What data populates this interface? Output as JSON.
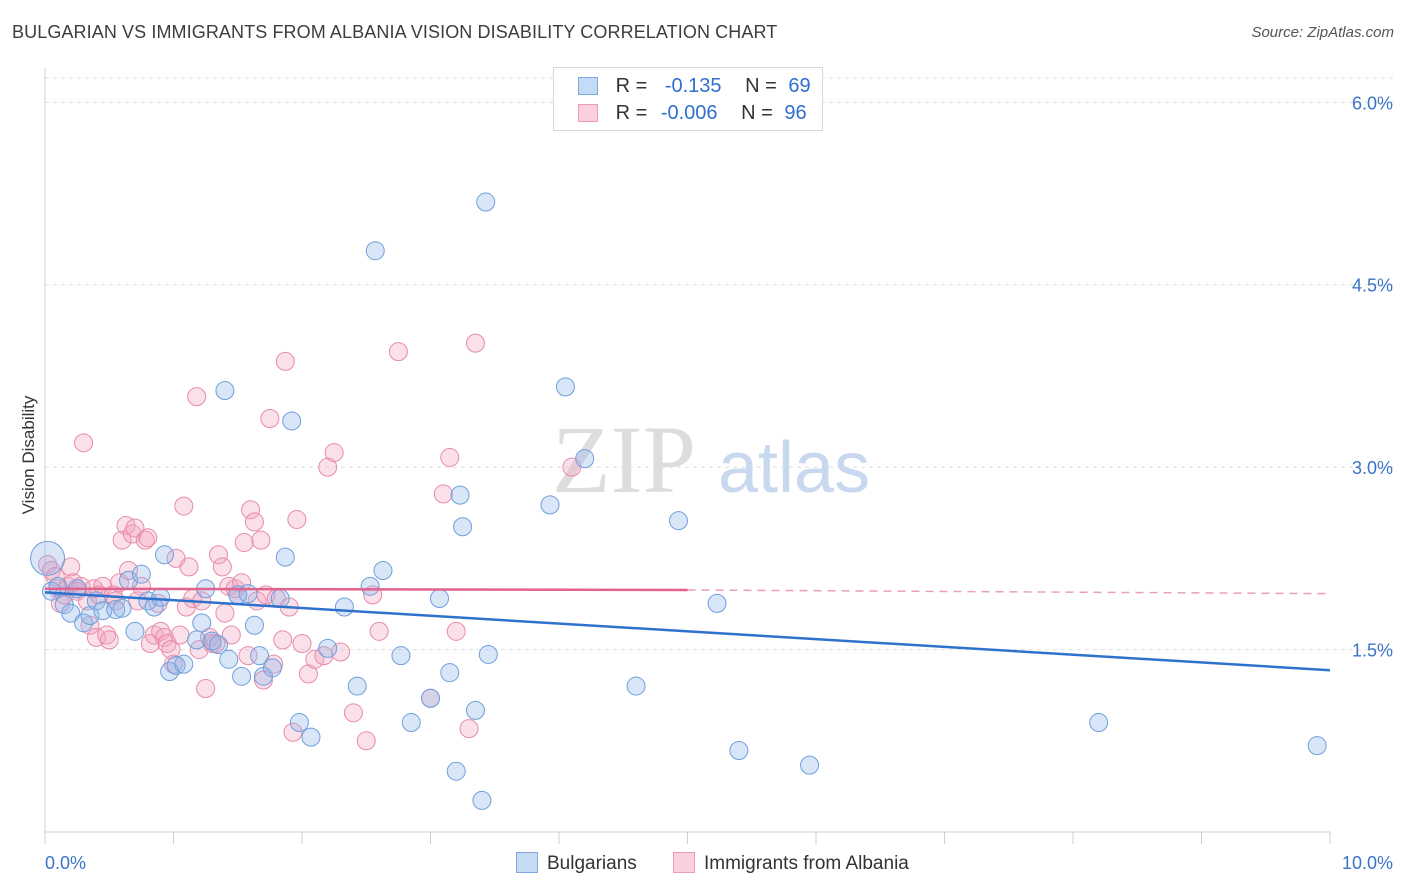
{
  "title": "BULGARIAN VS IMMIGRANTS FROM ALBANIA VISION DISABILITY CORRELATION CHART",
  "source": "Source: ZipAtlas.com",
  "watermark": {
    "zip": "ZIP",
    "atlas": "atlas"
  },
  "legend": {
    "rows": [
      {
        "r_label": "R =",
        "r_value": "-0.135",
        "n_label": "N =",
        "n_value": "69"
      },
      {
        "r_label": "R =",
        "r_value": "-0.006",
        "n_label": "N =",
        "n_value": "96"
      }
    ]
  },
  "chart_data": {
    "type": "scatter",
    "title": "BULGARIAN VS IMMIGRANTS FROM ALBANIA VISION DISABILITY CORRELATION CHART",
    "ylabel": "Vision Disability",
    "xlabel": "",
    "xlim": [
      0,
      10
    ],
    "ylim": [
      0,
      6.2
    ],
    "x_tick_labels": [
      {
        "value": 0,
        "label": "0.0%"
      },
      {
        "value": 10,
        "label": "10.0%"
      }
    ],
    "y_tick_labels": [
      {
        "value": 1.5,
        "label": "1.5%"
      },
      {
        "value": 3.0,
        "label": "3.0%"
      },
      {
        "value": 4.5,
        "label": "4.5%"
      },
      {
        "value": 6.0,
        "label": "6.0%"
      }
    ],
    "series": [
      {
        "name": "Bulgarians",
        "color": "#8fb8ea",
        "line_color": "#2f72cc",
        "R": -0.135,
        "N": 69,
        "trend": {
          "x0": 0,
          "y0": 1.97,
          "x1": 10,
          "y1": 1.33
        },
        "points": [
          [
            0.02,
            2.25
          ],
          [
            0.05,
            1.98
          ],
          [
            0.1,
            2.02
          ],
          [
            0.15,
            1.87
          ],
          [
            0.2,
            1.8
          ],
          [
            0.25,
            2.0
          ],
          [
            0.3,
            1.72
          ],
          [
            0.35,
            1.78
          ],
          [
            0.4,
            1.9
          ],
          [
            0.45,
            1.82
          ],
          [
            0.55,
            1.83
          ],
          [
            0.6,
            1.84
          ],
          [
            0.65,
            2.07
          ],
          [
            0.7,
            1.65
          ],
          [
            0.75,
            2.12
          ],
          [
            0.8,
            1.9
          ],
          [
            0.85,
            1.85
          ],
          [
            0.9,
            1.93
          ],
          [
            0.93,
            2.28
          ],
          [
            0.97,
            1.32
          ],
          [
            1.02,
            1.37
          ],
          [
            1.08,
            1.38
          ],
          [
            1.18,
            1.58
          ],
          [
            1.22,
            1.72
          ],
          [
            1.25,
            2.0
          ],
          [
            1.3,
            1.57
          ],
          [
            1.35,
            1.54
          ],
          [
            1.4,
            3.63
          ],
          [
            1.43,
            1.42
          ],
          [
            1.5,
            1.95
          ],
          [
            1.53,
            1.28
          ],
          [
            1.58,
            1.96
          ],
          [
            1.63,
            1.7
          ],
          [
            1.67,
            1.45
          ],
          [
            1.7,
            1.28
          ],
          [
            1.77,
            1.35
          ],
          [
            1.83,
            1.92
          ],
          [
            1.87,
            2.26
          ],
          [
            1.92,
            3.38
          ],
          [
            1.98,
            0.9
          ],
          [
            2.07,
            0.78
          ],
          [
            2.2,
            1.51
          ],
          [
            2.33,
            1.85
          ],
          [
            2.43,
            1.2
          ],
          [
            2.53,
            2.02
          ],
          [
            2.57,
            4.78
          ],
          [
            2.63,
            2.15
          ],
          [
            2.77,
            1.45
          ],
          [
            2.85,
            0.9
          ],
          [
            3.0,
            1.1
          ],
          [
            3.07,
            1.92
          ],
          [
            3.15,
            1.31
          ],
          [
            3.2,
            0.5
          ],
          [
            3.23,
            2.77
          ],
          [
            3.25,
            2.51
          ],
          [
            3.35,
            1.0
          ],
          [
            3.4,
            0.26
          ],
          [
            3.43,
            5.18
          ],
          [
            3.45,
            1.46
          ],
          [
            3.93,
            2.69
          ],
          [
            4.05,
            3.66
          ],
          [
            4.2,
            3.07
          ],
          [
            4.6,
            1.2
          ],
          [
            4.93,
            2.56
          ],
          [
            5.23,
            1.88
          ],
          [
            5.4,
            0.67
          ],
          [
            5.95,
            0.55
          ],
          [
            8.2,
            0.9
          ],
          [
            9.9,
            0.71
          ]
        ]
      },
      {
        "name": "Immigrants from Albania",
        "color": "#f2a7bf",
        "line_color": "#e0628e",
        "R": -0.006,
        "N": 96,
        "trend": {
          "x0": 0,
          "y0": 2.0,
          "x1": 5,
          "y1": 1.99,
          "dash_to_x": 10,
          "dash_to_y": 1.96
        },
        "points": [
          [
            0.02,
            2.2
          ],
          [
            0.05,
            2.15
          ],
          [
            0.08,
            2.1
          ],
          [
            0.1,
            2.0
          ],
          [
            0.12,
            1.88
          ],
          [
            0.15,
            1.95
          ],
          [
            0.18,
            2.02
          ],
          [
            0.2,
            2.18
          ],
          [
            0.22,
            2.05
          ],
          [
            0.25,
            1.98
          ],
          [
            0.28,
            2.02
          ],
          [
            0.3,
            3.2
          ],
          [
            0.33,
            1.9
          ],
          [
            0.35,
            1.7
          ],
          [
            0.38,
            2.0
          ],
          [
            0.4,
            1.6
          ],
          [
            0.42,
            1.95
          ],
          [
            0.45,
            2.02
          ],
          [
            0.48,
            1.62
          ],
          [
            0.5,
            1.58
          ],
          [
            0.53,
            1.95
          ],
          [
            0.55,
            1.9
          ],
          [
            0.58,
            2.05
          ],
          [
            0.6,
            2.4
          ],
          [
            0.63,
            2.52
          ],
          [
            0.65,
            2.15
          ],
          [
            0.68,
            2.45
          ],
          [
            0.7,
            2.5
          ],
          [
            0.72,
            1.9
          ],
          [
            0.75,
            2.02
          ],
          [
            0.78,
            2.4
          ],
          [
            0.8,
            2.42
          ],
          [
            0.82,
            1.55
          ],
          [
            0.85,
            1.62
          ],
          [
            0.88,
            1.88
          ],
          [
            0.9,
            1.65
          ],
          [
            0.93,
            1.6
          ],
          [
            0.95,
            1.55
          ],
          [
            0.98,
            1.5
          ],
          [
            1.0,
            1.38
          ],
          [
            1.02,
            2.25
          ],
          [
            1.05,
            1.62
          ],
          [
            1.08,
            2.68
          ],
          [
            1.1,
            1.85
          ],
          [
            1.12,
            2.18
          ],
          [
            1.15,
            1.92
          ],
          [
            1.18,
            3.58
          ],
          [
            1.2,
            1.5
          ],
          [
            1.22,
            1.9
          ],
          [
            1.25,
            1.18
          ],
          [
            1.28,
            1.6
          ],
          [
            1.3,
            1.55
          ],
          [
            1.33,
            1.55
          ],
          [
            1.35,
            2.28
          ],
          [
            1.38,
            2.18
          ],
          [
            1.4,
            1.8
          ],
          [
            1.43,
            2.02
          ],
          [
            1.45,
            1.62
          ],
          [
            1.48,
            2.0
          ],
          [
            1.5,
            1.95
          ],
          [
            1.53,
            2.05
          ],
          [
            1.55,
            2.38
          ],
          [
            1.58,
            1.45
          ],
          [
            1.6,
            2.65
          ],
          [
            1.63,
            2.55
          ],
          [
            1.65,
            1.9
          ],
          [
            1.68,
            2.4
          ],
          [
            1.7,
            1.25
          ],
          [
            1.72,
            1.95
          ],
          [
            1.75,
            3.4
          ],
          [
            1.78,
            1.38
          ],
          [
            1.8,
            1.92
          ],
          [
            1.85,
            1.58
          ],
          [
            1.87,
            3.87
          ],
          [
            1.9,
            1.85
          ],
          [
            1.93,
            0.82
          ],
          [
            1.96,
            2.57
          ],
          [
            2.0,
            1.55
          ],
          [
            2.05,
            1.3
          ],
          [
            2.1,
            1.42
          ],
          [
            2.17,
            1.45
          ],
          [
            2.2,
            3.0
          ],
          [
            2.25,
            3.12
          ],
          [
            2.3,
            1.48
          ],
          [
            2.4,
            0.98
          ],
          [
            2.5,
            0.75
          ],
          [
            2.55,
            1.95
          ],
          [
            2.6,
            1.65
          ],
          [
            2.75,
            3.95
          ],
          [
            3.0,
            1.1
          ],
          [
            3.1,
            2.78
          ],
          [
            3.15,
            3.08
          ],
          [
            3.2,
            1.65
          ],
          [
            3.3,
            0.85
          ],
          [
            3.35,
            4.02
          ],
          [
            4.1,
            3.0
          ]
        ]
      }
    ]
  },
  "bottom_legend": {
    "series1": "Bulgarians",
    "series2": "Immigrants from Albania"
  }
}
